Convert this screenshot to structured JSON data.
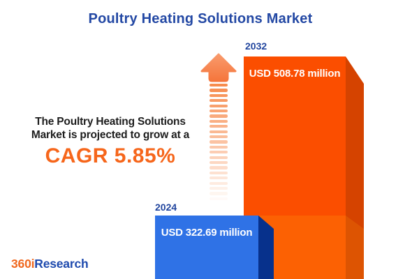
{
  "chart_data": {
    "type": "bar",
    "title": "Poultry Heating Solutions Market",
    "categories": [
      "2024",
      "2032"
    ],
    "values": [
      322.69,
      508.78
    ],
    "unit": "USD million",
    "value_labels": [
      "USD 322.69 million",
      "USD 508.78 million"
    ],
    "cagr_percent": 5.85,
    "ylim": [
      0,
      550
    ],
    "legend": false,
    "grid": false
  },
  "annotation": {
    "line1": "The Poultry Heating Solutions",
    "line2": "Market is projected to grow at a",
    "cagr_text": "CAGR 5.85%"
  },
  "logo": {
    "part1": "360i",
    "part2": "Research"
  },
  "colors": {
    "title_blue": "#2348A4",
    "label_blue": "#21459E",
    "bar_blue_front": "#2F72E6",
    "bar_blue_side": "#07318C",
    "bar_orange_front": "#FB4E00",
    "bar_orange_front_lower": "#FC6103",
    "bar_orange_side": "#D54300",
    "bar_orange_side_lower": "#DD5402",
    "cagr_orange": "#F6661B",
    "arrow_orange": "#F5763C",
    "arrow_orange_light": "#F99A6C",
    "stripe_orange": "#F78C4E",
    "text_dark": "#1D1D1D",
    "logo_orange": "#F0681F",
    "logo_blue": "#1E4AAE",
    "value_text": "#FFFFFF"
  }
}
